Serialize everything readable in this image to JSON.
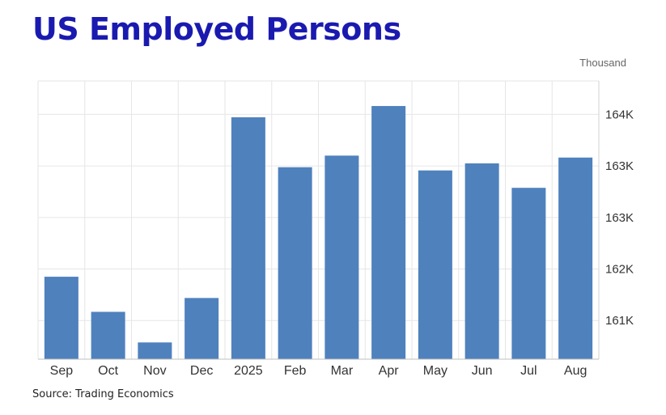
{
  "title": "US Employed Persons",
  "unit_label": "Thousand",
  "source": "Source: Trading Economics",
  "colors": {
    "bar": "#4f81bd",
    "title": "#1a1ab0",
    "grid": "#e6e6e6"
  },
  "chart_data": {
    "type": "bar",
    "title": "US Employed Persons",
    "xlabel": "",
    "ylabel": "Thousand",
    "categories": [
      "Sep",
      "Oct",
      "Nov",
      "Dec",
      "2025",
      "Feb",
      "Mar",
      "Apr",
      "May",
      "Jun",
      "Jul",
      "Aug"
    ],
    "values": [
      161580,
      161035,
      160560,
      161250,
      164055,
      163280,
      163460,
      164230,
      163230,
      163340,
      162960,
      163430
    ],
    "ylim": [
      160300,
      164620
    ],
    "yticks": [
      {
        "value": 160900,
        "label": "161K"
      },
      {
        "value": 161700,
        "label": "162K"
      },
      {
        "value": 162500,
        "label": "163K"
      },
      {
        "value": 163300,
        "label": "163K"
      },
      {
        "value": 164100,
        "label": "164K"
      }
    ],
    "grid": true,
    "axis_side": "right"
  }
}
